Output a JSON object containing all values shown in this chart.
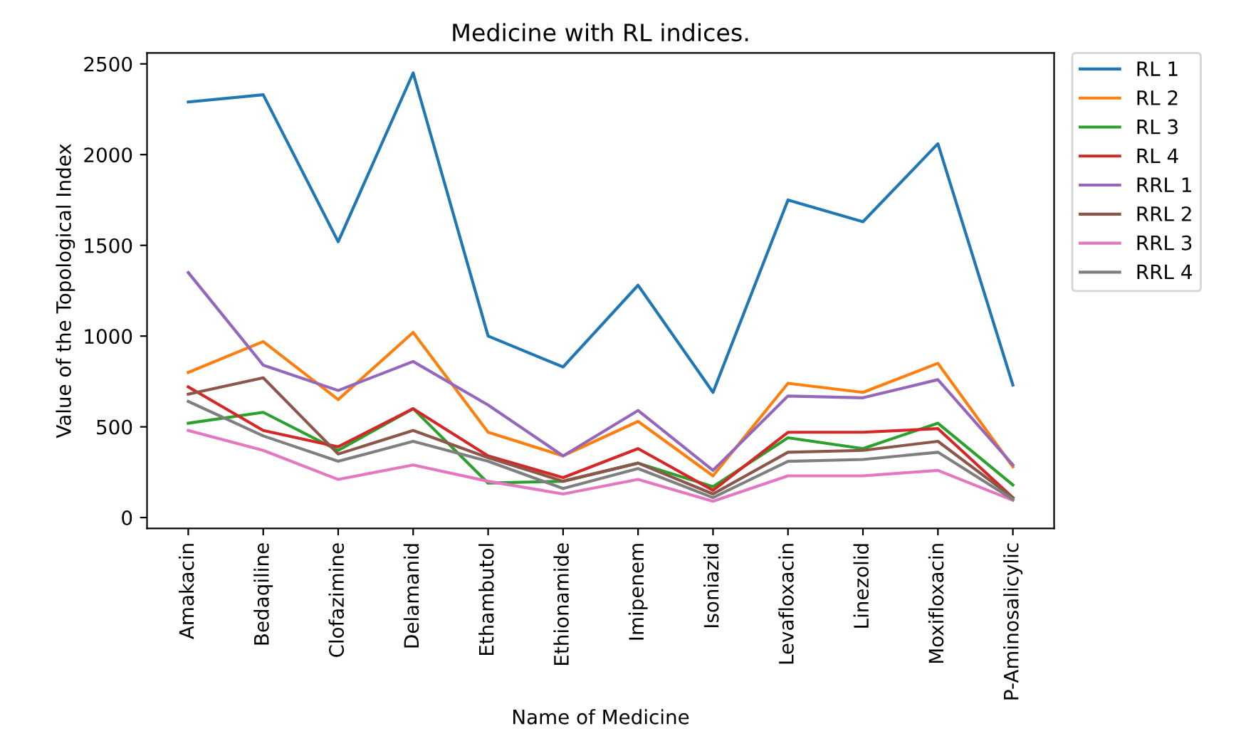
{
  "chart_data": {
    "type": "line",
    "title": "Medicine with RL indices.",
    "xlabel": "Name of Medicine",
    "ylabel": "Value of the Topological Index",
    "categories": [
      "Amakacin",
      "Bedaqiline",
      "Clofazimine",
      "Delamanid",
      "Ethambutol",
      "Ethionamide",
      "Imipenem",
      "Isoniazid",
      "Levafloxacin",
      "Linezolid",
      "Moxifloxacin",
      "P-Aminosalicylic"
    ],
    "series": [
      {
        "name": "RL 1",
        "color": "#1f77b4",
        "values": [
          2290,
          2330,
          1520,
          2450,
          1000,
          830,
          1280,
          690,
          1750,
          1630,
          2060,
          730
        ]
      },
      {
        "name": "RL 2",
        "color": "#ff7f0e",
        "values": [
          800,
          970,
          650,
          1020,
          470,
          340,
          530,
          230,
          740,
          690,
          850,
          280
        ]
      },
      {
        "name": "RL 3",
        "color": "#2ca02c",
        "values": [
          520,
          580,
          370,
          600,
          190,
          200,
          300,
          170,
          440,
          380,
          520,
          180
        ]
      },
      {
        "name": "RL 4",
        "color": "#d62728",
        "values": [
          720,
          480,
          390,
          600,
          340,
          220,
          380,
          150,
          470,
          470,
          490,
          110
        ]
      },
      {
        "name": "RRL 1",
        "color": "#9467bd",
        "values": [
          1350,
          840,
          700,
          860,
          620,
          340,
          590,
          260,
          670,
          660,
          760,
          290
        ]
      },
      {
        "name": "RRL 2",
        "color": "#8c564b",
        "values": [
          680,
          770,
          350,
          480,
          330,
          200,
          300,
          130,
          360,
          370,
          420,
          110
        ]
      },
      {
        "name": "RRL 3",
        "color": "#e377c2",
        "values": [
          480,
          370,
          210,
          290,
          200,
          130,
          210,
          90,
          230,
          230,
          260,
          95
        ]
      },
      {
        "name": "RRL 4",
        "color": "#7f7f7f",
        "values": [
          640,
          450,
          310,
          420,
          310,
          160,
          270,
          110,
          310,
          320,
          360,
          100
        ]
      }
    ],
    "ylim": [
      -60,
      2560
    ],
    "yticks": [
      0,
      500,
      1000,
      1500,
      2000,
      2500
    ],
    "grid": false,
    "legend": "top right",
    "marker": "none",
    "line_style": "solid"
  }
}
